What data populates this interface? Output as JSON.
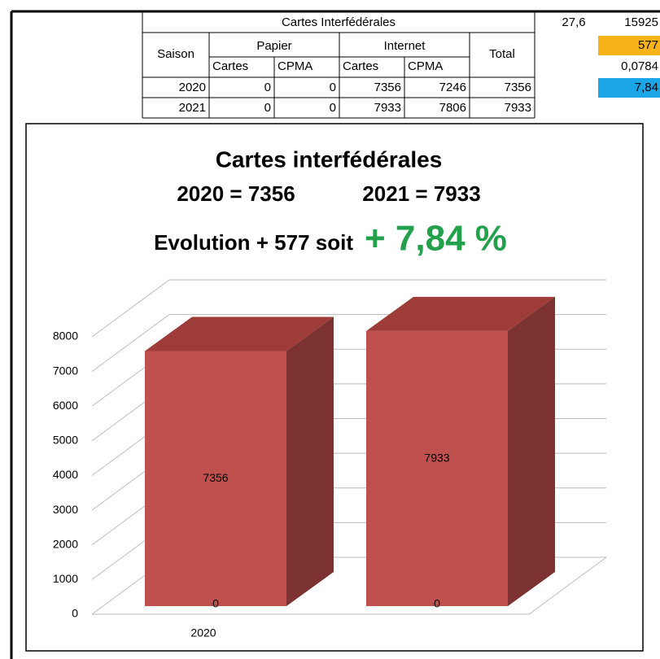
{
  "table": {
    "title": "Cartes Interfédérales",
    "saison": "Saison",
    "papier": "Papier",
    "internet": "Internet",
    "total": "Total",
    "sub": [
      "Cartes",
      "CPMA",
      "Cartes",
      "CPMA"
    ],
    "rows": [
      [
        "2020",
        0,
        0,
        7356,
        7246,
        7356
      ],
      [
        "2021",
        0,
        0,
        7933,
        7806,
        7933
      ]
    ]
  },
  "side": {
    "a": "27,6",
    "b": "15925",
    "c": "577",
    "d": "0,0784",
    "e": "7,84"
  },
  "chart_data": {
    "type": "bar3d",
    "title": "Cartes interfédérales",
    "subtitle": [
      "2020 = 7356",
      "2021 = 7933"
    ],
    "evolution": "Evolution + 577 soit",
    "evolution_pct": "+ 7,84 %",
    "categories": [
      "2020",
      null
    ],
    "series": [
      {
        "color": "#c0504d",
        "values": [
          7356,
          7933
        ]
      },
      {
        "values": [
          0,
          0
        ]
      }
    ],
    "ylim": [
      0,
      8000
    ],
    "yticks": [
      0,
      1000,
      2000,
      3000,
      4000,
      5000,
      6000,
      7000,
      8000
    ],
    "grid": true
  }
}
